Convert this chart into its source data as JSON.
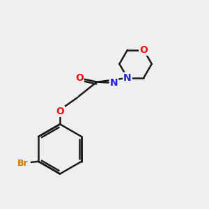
{
  "background_color": "#efefef",
  "bond_color": "#1a1a1a",
  "O_color": "#ee1111",
  "N_color": "#2222cc",
  "Br_color": "#cc7700",
  "lw": 1.8,
  "doff": 0.1,
  "fs": 10,
  "figsize": [
    3.0,
    3.0
  ],
  "dpi": 100,
  "xlim": [
    0,
    10
  ],
  "ylim": [
    0,
    10
  ]
}
